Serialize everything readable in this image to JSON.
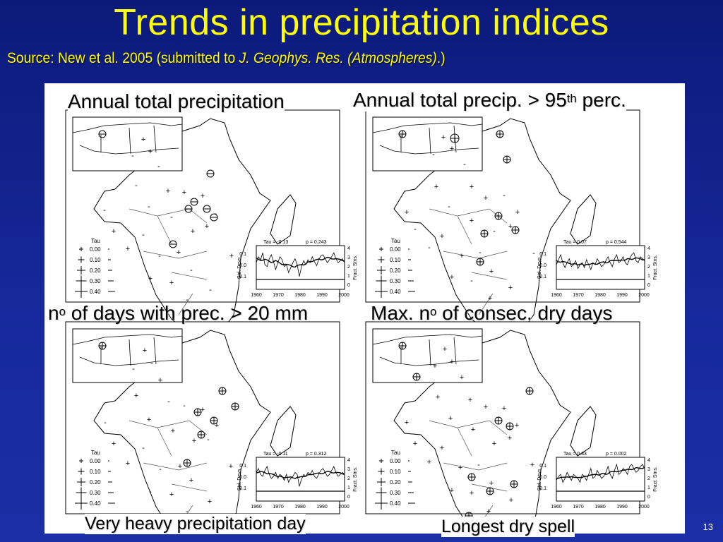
{
  "slide": {
    "title": "Trends in precipitation indices",
    "source_prefix": "Source: New et al. 2005 (submitted to ",
    "source_journal": "J. Geophys. Res. (Atmospheres)",
    "source_suffix": ".)",
    "page_number": "13"
  },
  "panels": [
    {
      "title": "Annual total precipitation",
      "tau": "Tau = -0.13",
      "p": "p = 0.243"
    },
    {
      "title": "Annual total precip. > 95",
      "title_sup": "th",
      "title_tail": " perc.",
      "tau": "Tau = 0.07",
      "p": "p = 0.544"
    },
    {
      "title": "n",
      "title_sup": "o",
      "title_tail": " of days with prec. > 20 mm",
      "tau": "Tau = -0.11",
      "p": "p = 0.312"
    },
    {
      "title": "Max. n",
      "title_sup": "o",
      "title_tail": " of consec. dry days",
      "tau": "Tau = 0.33",
      "p": "p = 0.002"
    }
  ],
  "bottom_captions": [
    "Very heavy precipitation day",
    "Longest dry spell"
  ],
  "legend": {
    "label": "Tau",
    "values": [
      "0.00",
      "0.10",
      "0.20",
      "0.30",
      "0.40"
    ]
  },
  "inset_axes": {
    "y_left_label": "Std. Devs.",
    "y_right_label": "Fract. Stns.",
    "y_left_ticks": [
      "0.1",
      "0.0",
      "-0.1"
    ],
    "y_right_ticks": [
      "4",
      "3",
      "2",
      "1",
      "0"
    ],
    "x_ticks": [
      "1960",
      "1970",
      "1980",
      "1990",
      "2000"
    ]
  }
}
